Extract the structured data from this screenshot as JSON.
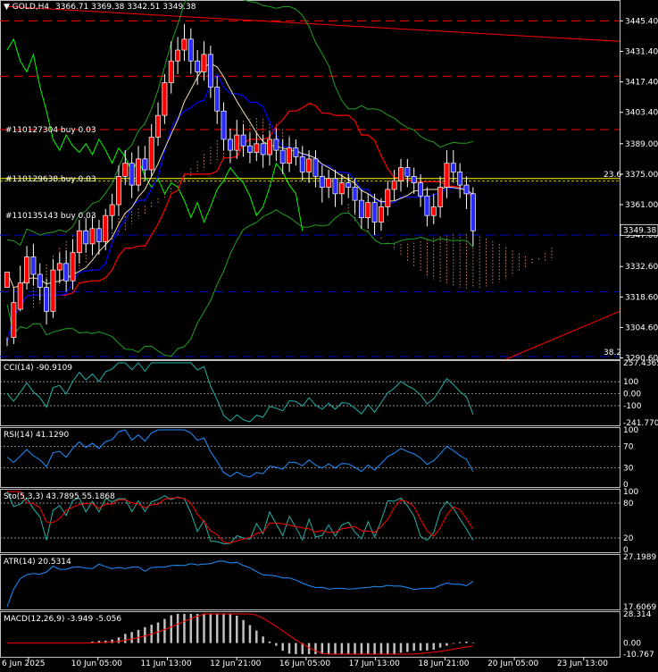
{
  "header": {
    "symbol": "GOLD,H4",
    "ohlc": "3366.71 3369.38 3342.51 3349.38",
    "menu_icon": "triangle-down-icon"
  },
  "orders": [
    {
      "label": "#110127304 buy 0.03",
      "price": 3395.5
    },
    {
      "label": "#110129638 buy 0.03",
      "price": 3373.0
    },
    {
      "label": "#110135143 buy 0.03",
      "price": 3356.0
    }
  ],
  "colors": {
    "background": "#000000",
    "grid": "#c0c0c0",
    "bull": "#ff0000",
    "bear": "#2a2aff",
    "order_line": "#ff0000",
    "level_line": "#0000cd",
    "fib_line": "#ffff00",
    "kijun": "#ff0000",
    "tenkan": "#0000ff",
    "chikou": "#00ff00",
    "bands": "#20a020",
    "kumo": "#ffa07a",
    "cci": "#20b2aa",
    "rsi": "#1e90ff",
    "stoch_main": "#20b2aa",
    "stoch_signal": "#ff0000",
    "atr": "#1e90ff",
    "macd_hist": "#c0c0c0",
    "macd_signal": "#ff0000"
  },
  "chart_data": {
    "type": "candlestick",
    "price_axis": {
      "labels": [
        "3445.40",
        "3431.40",
        "3417.40",
        "3403.40",
        "3389.00",
        "3375.00",
        "3361.00",
        "3347.00",
        "3332.60",
        "3318.60",
        "3304.60",
        "3290.60"
      ],
      "current_price": "3349.38",
      "ylim": [
        3290,
        3455
      ]
    },
    "horizontal_levels": {
      "red_dashed": [
        3445.4,
        3420.0,
        3395.5
      ],
      "blue_dashed": [
        3347.0,
        3321.0,
        3291.3
      ],
      "fib_23_6": {
        "label": "23.6",
        "price": 3373.0
      },
      "fib_38_2": {
        "label": "38.2",
        "price": 3291.3
      }
    },
    "trendlines": [
      {
        "name": "upper",
        "from": [
          0,
          3452
        ],
        "to": [
          99,
          3436
        ]
      },
      {
        "name": "lower",
        "from": [
          76,
          3290
        ],
        "to": [
          99,
          3312
        ]
      }
    ],
    "x_labels": [
      "6 Jun 2025",
      "10 Jun 05:00",
      "11 Jun 13:00",
      "12 Jun 21:00",
      "16 Jun 05:00",
      "17 Jun 13:00",
      "18 Jun 21:00",
      "20 Jun 05:00",
      "23 Jun 13:00"
    ],
    "candles": [
      [
        3323,
        3330,
        3300,
        3296
      ],
      [
        3300,
        3316,
        3323,
        3297
      ],
      [
        3313,
        3325,
        3333,
        3312
      ],
      [
        3325,
        3337,
        3342,
        3322
      ],
      [
        3337,
        3329,
        3343,
        3324
      ],
      [
        3329,
        3323,
        3334,
        3317
      ],
      [
        3323,
        3312,
        3327,
        3306
      ],
      [
        3312,
        3331,
        3336,
        3309
      ],
      [
        3331,
        3334,
        3339,
        3325
      ],
      [
        3334,
        3326,
        3340,
        3321
      ],
      [
        3326,
        3339,
        3345,
        3322
      ],
      [
        3339,
        3349,
        3354,
        3334
      ],
      [
        3349,
        3343,
        3355,
        3339
      ],
      [
        3343,
        3350,
        3356,
        3338
      ],
      [
        3350,
        3344,
        3354,
        3338
      ],
      [
        3344,
        3356,
        3359,
        3340
      ],
      [
        3356,
        3361,
        3366,
        3350
      ],
      [
        3361,
        3374,
        3379,
        3356
      ],
      [
        3374,
        3380,
        3386,
        3370
      ],
      [
        3380,
        3370,
        3385,
        3364
      ],
      [
        3370,
        3382,
        3388,
        3367
      ],
      [
        3382,
        3377,
        3388,
        3372
      ],
      [
        3377,
        3392,
        3398,
        3374
      ],
      [
        3392,
        3402,
        3408,
        3388
      ],
      [
        3402,
        3417,
        3421,
        3398
      ],
      [
        3417,
        3427,
        3436,
        3412
      ],
      [
        3427,
        3432,
        3438,
        3421
      ],
      [
        3432,
        3437,
        3444,
        3427
      ],
      [
        3437,
        3427,
        3442,
        3421
      ],
      [
        3427,
        3422,
        3432,
        3416
      ],
      [
        3422,
        3430,
        3436,
        3418
      ],
      [
        3430,
        3415,
        3434,
        3410
      ],
      [
        3415,
        3404,
        3420,
        3398
      ],
      [
        3404,
        3391,
        3408,
        3386
      ],
      [
        3391,
        3386,
        3396,
        3380
      ],
      [
        3386,
        3393,
        3400,
        3382
      ],
      [
        3393,
        3388,
        3398,
        3383
      ],
      [
        3388,
        3385,
        3394,
        3380
      ],
      [
        3385,
        3389,
        3394,
        3381
      ],
      [
        3389,
        3384,
        3393,
        3378
      ],
      [
        3384,
        3391,
        3395,
        3379
      ],
      [
        3391,
        3386,
        3396,
        3381
      ],
      [
        3386,
        3380,
        3391,
        3375
      ],
      [
        3380,
        3387,
        3392,
        3376
      ],
      [
        3387,
        3383,
        3391,
        3379
      ],
      [
        3383,
        3376,
        3388,
        3372
      ],
      [
        3376,
        3382,
        3386,
        3371
      ],
      [
        3382,
        3374,
        3386,
        3369
      ],
      [
        3374,
        3369,
        3379,
        3362
      ],
      [
        3369,
        3373,
        3377,
        3364
      ],
      [
        3373,
        3366,
        3377,
        3360
      ],
      [
        3366,
        3371,
        3375,
        3361
      ],
      [
        3371,
        3369,
        3375,
        3364
      ],
      [
        3369,
        3363,
        3373,
        3357
      ],
      [
        3363,
        3355,
        3368,
        3350
      ],
      [
        3355,
        3362,
        3366,
        3350
      ],
      [
        3362,
        3353,
        3366,
        3347
      ],
      [
        3353,
        3360,
        3364,
        3349
      ],
      [
        3360,
        3368,
        3372,
        3356
      ],
      [
        3368,
        3372,
        3377,
        3363
      ],
      [
        3372,
        3378,
        3382,
        3367
      ],
      [
        3378,
        3374,
        3382,
        3369
      ],
      [
        3374,
        3371,
        3378,
        3366
      ],
      [
        3371,
        3365,
        3375,
        3360
      ],
      [
        3365,
        3356,
        3369,
        3351
      ],
      [
        3356,
        3360,
        3366,
        3352
      ],
      [
        3360,
        3369,
        3374,
        3355
      ],
      [
        3369,
        3380,
        3386,
        3364
      ],
      [
        3380,
        3376,
        3386,
        3371
      ],
      [
        3376,
        3370,
        3380,
        3364
      ],
      [
        3370,
        3366,
        3374,
        3359
      ],
      [
        3366,
        3349,
        3369,
        3342
      ]
    ],
    "indicators": {
      "cci": {
        "label": "CCI(14) -90.9109",
        "ticks": [
          "257.4365",
          "100",
          "0.00",
          "-100",
          "-241.7709"
        ],
        "ylim": [
          -241.77,
          257.44
        ]
      },
      "rsi": {
        "label": "RSI(14) 41.1290",
        "ticks": [
          "100",
          "70",
          "30",
          "0"
        ],
        "ylim": [
          0,
          100
        ]
      },
      "stoch": {
        "label": "Sto(5,3,3) 43.7895 55.1868",
        "ticks": [
          "100",
          "80",
          "20",
          "0"
        ],
        "ylim": [
          0,
          100
        ]
      },
      "atr": {
        "label": "ATR(14) 20.5314",
        "ticks": [
          "27.1989",
          "17.6069"
        ],
        "ylim": [
          17.6069,
          27.1989
        ]
      },
      "macd": {
        "label": "MACD(12,26,9) -3.949 -5.056",
        "ticks": [
          "28.314",
          "0.00",
          "-10.767"
        ],
        "ylim": [
          -10.767,
          28.314
        ]
      }
    }
  }
}
